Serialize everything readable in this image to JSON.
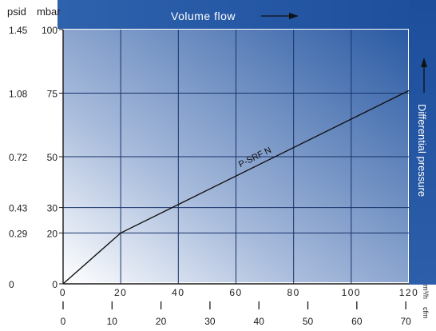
{
  "chart_data": {
    "type": "line",
    "title": "",
    "xlabel": "Volume flow",
    "ylabel": "Differential pressure",
    "y_units": [
      "psid",
      "mbar"
    ],
    "x_units": [
      "m³/h",
      "cfm"
    ],
    "xlim": [
      0,
      120
    ],
    "ylim": [
      0,
      100
    ],
    "x_ticks_primary": [
      "0",
      "20",
      "40",
      "60",
      "80",
      "100",
      "120"
    ],
    "x_ticks_secondary": [
      "0",
      "10",
      "20",
      "30",
      "40",
      "50",
      "60",
      "70"
    ],
    "y_ticks_primary": [
      "0",
      "20",
      "30",
      "50",
      "75",
      "100"
    ],
    "y_ticks_secondary": [
      "0",
      "0.29",
      "0.43",
      "0.72",
      "1.08",
      "1.45"
    ],
    "grid": true,
    "series": [
      {
        "name": "P-SRF N",
        "x": [
          0,
          20,
          120
        ],
        "y": [
          0,
          20,
          76
        ]
      }
    ]
  }
}
